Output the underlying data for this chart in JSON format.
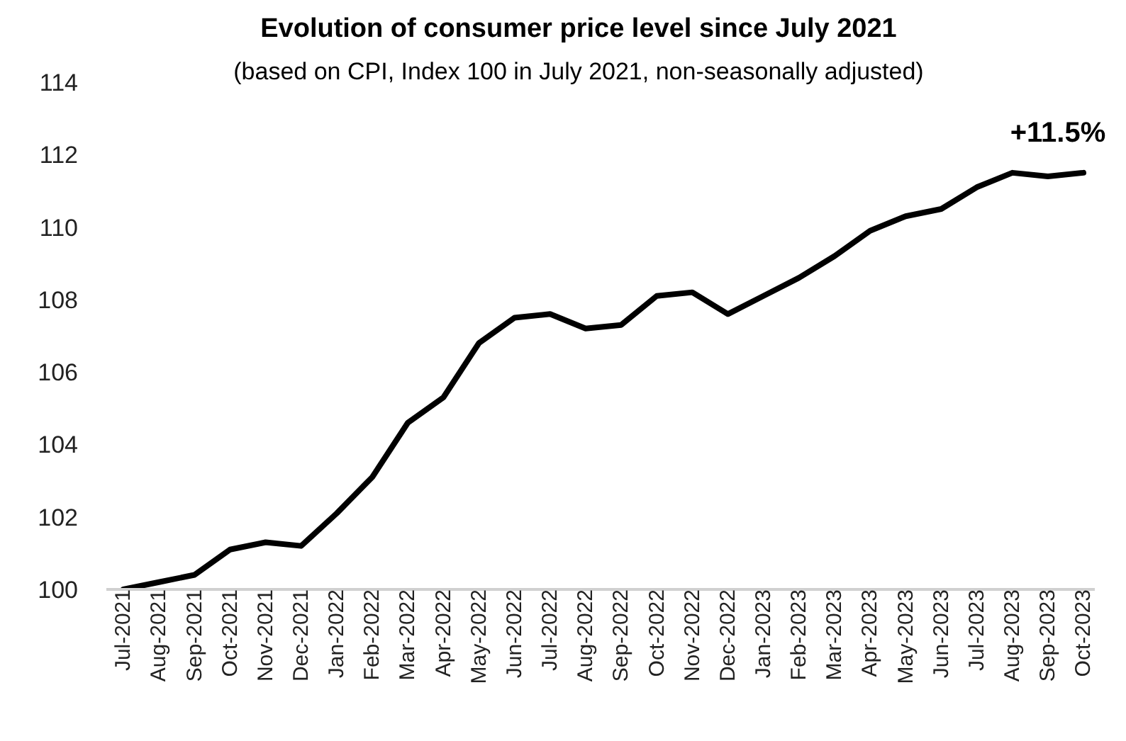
{
  "chart_data": {
    "type": "line",
    "title": "Evolution of consumer price level since July 2021",
    "subtitle": "(based on CPI, Index 100 in July 2021, non-seasonally adjusted)",
    "categories": [
      "Jul-2021",
      "Aug-2021",
      "Sep-2021",
      "Oct-2021",
      "Nov-2021",
      "Dec-2021",
      "Jan-2022",
      "Feb-2022",
      "Mar-2022",
      "Apr-2022",
      "May-2022",
      "Jun-2022",
      "Jul-2022",
      "Aug-2022",
      "Sep-2022",
      "Oct-2022",
      "Nov-2022",
      "Dec-2022",
      "Jan-2023",
      "Feb-2023",
      "Mar-2023",
      "Apr-2023",
      "May-2023",
      "Jun-2023",
      "Jul-2023",
      "Aug-2023",
      "Sep-2023",
      "Oct-2023"
    ],
    "series": [
      {
        "color": "#000000",
        "values": [
          100.0,
          100.2,
          100.4,
          101.1,
          101.3,
          101.2,
          102.1,
          103.1,
          104.6,
          105.3,
          106.8,
          107.5,
          107.6,
          107.2,
          107.3,
          108.1,
          108.2,
          107.6,
          108.1,
          108.6,
          109.2,
          109.9,
          110.3,
          110.5,
          111.1,
          111.5,
          111.4,
          111.5
        ]
      }
    ],
    "ylim": [
      100,
      114
    ],
    "yticks": [
      100,
      102,
      104,
      106,
      108,
      110,
      112,
      114
    ],
    "annotations": [
      {
        "text": "+11.5%",
        "x": "Oct-2023",
        "y": 111.5
      }
    ],
    "grid": false,
    "legend": false,
    "marker": "none",
    "line_style": "solid"
  }
}
